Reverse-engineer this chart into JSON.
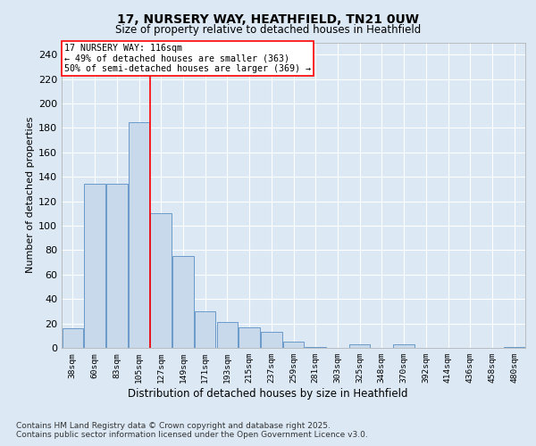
{
  "title_line1": "17, NURSERY WAY, HEATHFIELD, TN21 0UW",
  "title_line2": "Size of property relative to detached houses in Heathfield",
  "xlabel": "Distribution of detached houses by size in Heathfield",
  "ylabel": "Number of detached properties",
  "categories": [
    "38sqm",
    "60sqm",
    "83sqm",
    "105sqm",
    "127sqm",
    "149sqm",
    "171sqm",
    "193sqm",
    "215sqm",
    "237sqm",
    "259sqm",
    "281sqm",
    "303sqm",
    "325sqm",
    "348sqm",
    "370sqm",
    "392sqm",
    "414sqm",
    "436sqm",
    "458sqm",
    "480sqm"
  ],
  "values": [
    16,
    134,
    134,
    185,
    110,
    75,
    30,
    21,
    17,
    13,
    5,
    1,
    0,
    3,
    0,
    3,
    0,
    0,
    0,
    0,
    1
  ],
  "bar_color": "#c9d9ec",
  "bar_edge_color": "#5a8fc3",
  "redline_x": 3.5,
  "annotation_title": "17 NURSERY WAY: 116sqm",
  "annotation_line2": "← 49% of detached houses are smaller (363)",
  "annotation_line3": "50% of semi-detached houses are larger (369) →",
  "ylim": [
    0,
    250
  ],
  "yticks": [
    0,
    20,
    40,
    60,
    80,
    100,
    120,
    140,
    160,
    180,
    200,
    220,
    240
  ],
  "background_color": "#dce9f5",
  "plot_bg_color": "#dce9f5",
  "grid_color": "#ffffff",
  "footnote_line1": "Contains HM Land Registry data © Crown copyright and database right 2025.",
  "footnote_line2": "Contains public sector information licensed under the Open Government Licence v3.0."
}
